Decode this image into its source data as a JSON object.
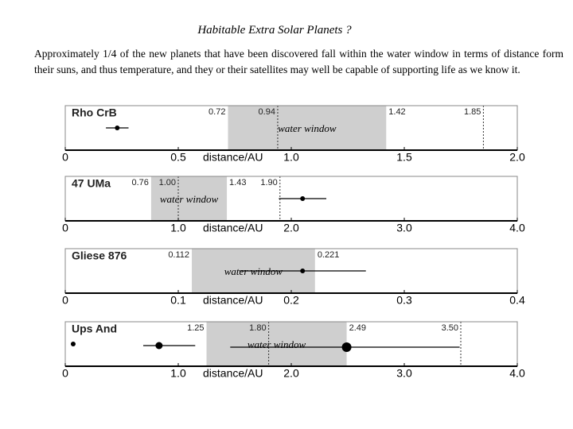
{
  "title": "Habitable Extra Solar Planets ?",
  "body": "Approximately 1/4 of the new planets that have been discovered fall within the water window in terms of distance form their suns, and thus temperature, and they or their satellites may well be capable of supporting life as we know it.",
  "chart_data": [
    {
      "type": "orbit",
      "name": "Rho CrB",
      "xlabel": "distance/AU",
      "xlim": [
        0,
        2
      ],
      "xticks": [
        0,
        0.5,
        {
          "value": 1,
          "label": "1.0"
        },
        1.5,
        {
          "value": 2,
          "label": "2.0"
        }
      ],
      "window": {
        "label": "water window",
        "from": 0.72,
        "to": 1.42
      },
      "markers": [
        0.94,
        1.85
      ],
      "planets": {
        "x": [
          0.23
        ],
        "low": [
          0.18
        ],
        "high": [
          0.28
        ]
      }
    },
    {
      "type": "orbit",
      "name": "47 UMa",
      "xlabel": "distance/AU",
      "xlim": [
        0,
        4
      ],
      "xticks": [
        0,
        {
          "value": 1,
          "label": "1.0"
        },
        {
          "value": 2,
          "label": "2.0"
        },
        {
          "value": 3,
          "label": "3.0"
        },
        {
          "value": 4,
          "label": "4.0"
        }
      ],
      "window": {
        "label": "water window",
        "from": 0.76,
        "to": 1.43
      },
      "markers": [
        {
          "value": 1,
          "label": "1.00"
        },
        {
          "value": 1.9,
          "label": "1.90"
        }
      ],
      "planets": {
        "x": [
          2.1
        ],
        "low": [
          1.89
        ],
        "high": [
          2.31
        ]
      }
    },
    {
      "type": "orbit",
      "name": "Gliese 876",
      "xlabel": "distance/AU",
      "xlim": [
        0,
        0.4
      ],
      "xticks": [
        0,
        0.1,
        0.2,
        0.3,
        0.4
      ],
      "window": {
        "label": "water window",
        "from": 0.112,
        "to": 0.221
      },
      "markers": [],
      "planets": {
        "x": [
          0.21
        ],
        "low": [
          0.154
        ],
        "high": [
          0.266
        ]
      }
    },
    {
      "type": "orbit",
      "name": "Ups And",
      "xlabel": "distance/AU",
      "xlim": [
        0,
        4
      ],
      "xticks": [
        0,
        {
          "value": 1,
          "label": "1.0"
        },
        {
          "value": 2,
          "label": "2.0"
        },
        {
          "value": 3,
          "label": "3.0"
        },
        {
          "value": 4,
          "label": "4.0"
        }
      ],
      "window": {
        "label": "water window",
        "from": 1.25,
        "to": 2.49
      },
      "markers": [
        {
          "value": 1.8,
          "label": "1.80"
        },
        {
          "value": 3.5,
          "label": "3.50"
        }
      ],
      "planets": {
        "x": [
          0.07,
          0.83,
          2.49
        ],
        "low": [
          0.05,
          0.69,
          1.46
        ],
        "high": [
          0.09,
          1.15,
          3.49
        ]
      }
    }
  ]
}
